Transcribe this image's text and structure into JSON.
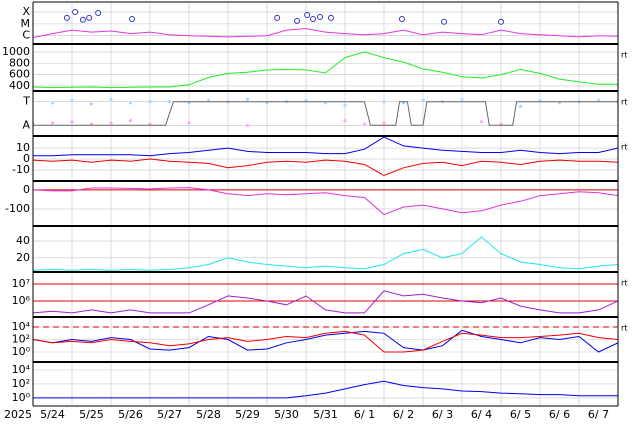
{
  "chart_data": [
    {
      "type": "line",
      "log": true,
      "xlim": [
        0,
        15
      ],
      "ylim": [
        2e-07,
        0.0007
      ],
      "yticks": [
        {
          "value": 0.0001,
          "label": "X"
        },
        {
          "value": 1e-05,
          "label": "M"
        },
        {
          "value": 1e-06,
          "label": "C"
        }
      ],
      "x": [
        0,
        0.5,
        1,
        1.5,
        2,
        2.5,
        3,
        3.5,
        4,
        4.5,
        5,
        5.5,
        6,
        6.5,
        7,
        7.5,
        8,
        8.5,
        9,
        9.5,
        10,
        10.5,
        11,
        11.5,
        12,
        12.5,
        13,
        13.5,
        14,
        14.5,
        15
      ],
      "series": [
        {
          "style": "line",
          "color": "#e633e6",
          "values": [
            7e-07,
            1.5e-06,
            3e-06,
            2e-06,
            2.5e-06,
            1.5e-06,
            2e-06,
            1.2e-06,
            1e-06,
            9e-07,
            8e-07,
            9e-07,
            1e-06,
            3e-06,
            4e-06,
            2e-06,
            1.5e-06,
            1.2e-06,
            1.5e-06,
            3e-06,
            1.2e-06,
            2e-06,
            1.5e-06,
            1.2e-06,
            3e-06,
            1.5e-06,
            1.2e-06,
            1e-06,
            8e-07,
            1e-06,
            9e-07
          ]
        },
        {
          "style": "circles",
          "color": "#3333cc",
          "x": [
            0.87,
            1.08,
            1.28,
            1.44,
            1.67,
            2.54,
            6.26,
            6.77,
            7.03,
            7.18,
            7.36,
            7.64,
            9.46,
            10.54,
            12.0
          ],
          "values": [
            3.2e-05,
            0.0001,
            2.2e-05,
            3.2e-05,
            8.3e-05,
            2.6e-05,
            3.2e-05,
            1.8e-05,
            5.6e-05,
            2.6e-05,
            3.8e-05,
            3.2e-05,
            2.6e-05,
            1.5e-05,
            1.5e-05
          ]
        }
      ]
    },
    {
      "type": "line",
      "xlim": [
        0,
        15
      ],
      "ylim": [
        310,
        1140
      ],
      "yticks": [
        1000,
        800,
        600,
        400
      ],
      "note": "rt",
      "x": [
        0,
        0.5,
        1,
        1.5,
        2,
        2.5,
        3,
        3.5,
        4,
        4.5,
        5,
        5.5,
        6,
        6.5,
        7,
        7.5,
        8,
        8.5,
        9,
        9.5,
        10,
        10.5,
        11,
        11.5,
        12,
        12.5,
        13,
        13.5,
        14,
        14.5,
        15
      ],
      "series": [
        {
          "style": "line",
          "color": "#22ee22",
          "values": [
            380,
            370,
            375,
            380,
            370,
            375,
            380,
            380,
            420,
            550,
            620,
            640,
            680,
            690,
            680,
            630,
            900,
            1000,
            900,
            820,
            700,
            640,
            560,
            540,
            600,
            690,
            620,
            520,
            470,
            430,
            430
          ]
        }
      ]
    },
    {
      "type": "line",
      "xlim": [
        0,
        15
      ],
      "ylim": [
        -1.9,
        1.9
      ],
      "yticks": [
        {
          "value": 1,
          "label": "T"
        },
        {
          "value": -1,
          "label": "A"
        }
      ],
      "note": "rt",
      "x": [
        0,
        0.5,
        1,
        1.5,
        2,
        2.5,
        3,
        3.5,
        4,
        4.5,
        5,
        5.5,
        6,
        6.5,
        7,
        7.5,
        8,
        8.5,
        9,
        9.5,
        10,
        10.5,
        11,
        11.5,
        12,
        12.5,
        13,
        13.5,
        14,
        14.5,
        15
      ],
      "series": [
        {
          "style": "dots",
          "color": "#aad8ff",
          "values": [
            null,
            0.9,
            1.1,
            0.8,
            1.2,
            0.9,
            1,
            1,
            0.9,
            1.1,
            1,
            1.2,
            0.9,
            1,
            1.1,
            0.9,
            0.7,
            null,
            1,
            0.9,
            1.1,
            1,
            1.2,
            null,
            null,
            0.6,
            1.1,
            0.9,
            1,
            1.1,
            1
          ]
        },
        {
          "style": "dots",
          "color": "#ffaaee",
          "values": [
            -0.9,
            -0.8,
            -0.7,
            -0.9,
            -0.8,
            -0.6,
            -0.9,
            null,
            -0.8,
            null,
            null,
            -1,
            null,
            null,
            null,
            null,
            -0.6,
            -0.9,
            -0.8,
            null,
            null,
            null,
            null,
            -0.7,
            -0.9,
            null,
            null,
            null,
            null,
            null,
            null
          ]
        },
        {
          "style": "line",
          "color": "#666666",
          "x": [
            0,
            3.4,
            3.6,
            8.5,
            8.65,
            9.3,
            9.4,
            9.6,
            9.7,
            10.0,
            10.1,
            11.6,
            11.7,
            12.3,
            12.4,
            15
          ],
          "values": [
            -1,
            -1,
            1,
            1,
            -1,
            -1,
            1,
            1,
            -1,
            -1,
            1,
            1,
            -1,
            -1,
            1,
            1
          ]
        }
      ]
    },
    {
      "type": "line",
      "xlim": [
        0,
        15
      ],
      "ylim": [
        -20,
        21
      ],
      "yticks": [
        10,
        0,
        -10
      ],
      "note": "rt",
      "x": [
        0,
        0.5,
        1,
        1.5,
        2,
        2.5,
        3,
        3.5,
        4,
        4.5,
        5,
        5.5,
        6,
        6.5,
        7,
        7.5,
        8,
        8.5,
        9,
        9.5,
        10,
        10.5,
        11,
        11.5,
        12,
        12.5,
        13,
        13.5,
        14,
        14.5,
        15
      ],
      "series": [
        {
          "style": "line",
          "color": "#0000ee",
          "values": [
            3,
            3,
            4,
            4,
            4,
            4,
            3,
            5,
            6,
            8,
            10,
            7,
            6,
            6,
            6,
            5,
            5,
            9,
            20,
            12,
            10,
            8,
            7,
            6,
            6,
            8,
            6,
            5,
            6,
            6,
            10
          ]
        },
        {
          "style": "line",
          "color": "#ee0000",
          "values": [
            -1,
            -2,
            -1,
            -3,
            -1,
            -2,
            0,
            -2,
            -3,
            -4,
            -8,
            -6,
            -3,
            -2,
            -3,
            -1,
            -2,
            -5,
            -15,
            -8,
            -4,
            -3,
            -6,
            -2,
            -3,
            -5,
            -2,
            -1,
            -2,
            -2,
            -3
          ]
        }
      ]
    },
    {
      "type": "line",
      "xlim": [
        0,
        15
      ],
      "ylim": [
        -190,
        47
      ],
      "yticks": [
        0,
        -100
      ],
      "hlines": [
        {
          "value": 0,
          "color": "#dd0000"
        }
      ],
      "x": [
        0,
        0.5,
        1,
        1.5,
        2,
        2.5,
        3,
        3.5,
        4,
        4.5,
        5,
        5.5,
        6,
        6.5,
        7,
        7.5,
        8,
        8.5,
        9,
        9.5,
        10,
        10.5,
        11,
        11.5,
        12,
        12.5,
        13,
        13.5,
        14,
        14.5,
        15
      ],
      "series": [
        {
          "style": "line",
          "color": "#dd33dd",
          "values": [
            0,
            -5,
            -5,
            10,
            10,
            8,
            5,
            10,
            12,
            0,
            -20,
            -30,
            -20,
            -25,
            -20,
            -15,
            -30,
            -40,
            -130,
            -90,
            -80,
            -100,
            -120,
            -110,
            -80,
            -60,
            -30,
            -20,
            -10,
            -15,
            -30
          ]
        }
      ]
    },
    {
      "type": "line",
      "xlim": [
        0,
        15
      ],
      "ylim": [
        3,
        58
      ],
      "yticks": [
        40,
        20
      ],
      "x": [
        0,
        0.5,
        1,
        1.5,
        2,
        2.5,
        3,
        3.5,
        4,
        4.5,
        5,
        5.5,
        6,
        6.5,
        7,
        7.5,
        8,
        8.5,
        9,
        9.5,
        10,
        10.5,
        11,
        11.5,
        12,
        12.5,
        13,
        13.5,
        14,
        14.5,
        15
      ],
      "series": [
        {
          "style": "line",
          "color": "#22e5e5",
          "values": [
            5,
            6,
            5,
            6,
            5,
            6,
            5,
            6,
            8,
            12,
            20,
            15,
            12,
            10,
            8,
            10,
            8,
            7,
            12,
            25,
            30,
            20,
            25,
            45,
            25,
            15,
            12,
            8,
            7,
            10,
            12
          ]
        }
      ]
    },
    {
      "type": "line",
      "log": true,
      "xlim": [
        0,
        15
      ],
      "ylim": [
        115000,
        51000000
      ],
      "note": "rt",
      "yticks": [
        {
          "value": 10000000,
          "label": "10⁷"
        },
        {
          "value": 1000000,
          "label": "10⁶"
        }
      ],
      "hlines": [
        {
          "value": 10000000,
          "color": "#dd0000"
        },
        {
          "value": 1000000,
          "color": "#dd0000"
        }
      ],
      "x": [
        0,
        0.5,
        1,
        1.5,
        2,
        2.5,
        3,
        3.5,
        4,
        4.5,
        5,
        5.5,
        6,
        6.5,
        7,
        7.5,
        8,
        8.5,
        9,
        9.5,
        10,
        10.5,
        11,
        11.5,
        12,
        12.5,
        13,
        13.5,
        14,
        14.5,
        15
      ],
      "series": [
        {
          "style": "line",
          "color": "#a020d0",
          "values": [
            200000,
            250000,
            200000,
            300000,
            200000,
            300000,
            200000,
            200000,
            200000,
            600000,
            2000000,
            1500000,
            1000000,
            600000,
            2000000,
            300000,
            200000,
            200000,
            4000000,
            2000000,
            2500000,
            1500000,
            1000000,
            800000,
            1500000,
            500000,
            300000,
            200000,
            200000,
            300000,
            1000000
          ]
        }
      ]
    },
    {
      "type": "line",
      "log": true,
      "xlim": [
        0,
        15
      ],
      "ylim": [
        0.025,
        400000
      ],
      "note": "rt",
      "yticks": [
        {
          "value": 10000,
          "label": "10⁴"
        },
        {
          "value": 100,
          "label": "10²"
        },
        {
          "value": 1,
          "label": "10⁰"
        }
      ],
      "hlines": [
        {
          "value": 10000,
          "color": "#dd0000",
          "dash": true
        }
      ],
      "x": [
        0,
        0.5,
        1,
        1.5,
        2,
        2.5,
        3,
        3.5,
        4,
        4.5,
        5,
        5.5,
        6,
        6.5,
        7,
        7.5,
        8,
        8.5,
        9,
        9.5,
        10,
        10.5,
        11,
        11.5,
        12,
        12.5,
        13,
        13.5,
        14,
        14.5,
        15
      ],
      "series": [
        {
          "style": "line",
          "color": "#0000ee",
          "values": [
            100,
            30,
            100,
            50,
            200,
            100,
            3,
            2,
            5,
            300,
            100,
            2,
            3,
            30,
            100,
            500,
            1000,
            2000,
            1000,
            5,
            2,
            10,
            3000,
            300,
            100,
            30,
            200,
            100,
            300,
            1,
            30
          ]
        },
        {
          "style": "line",
          "color": "#ee0000",
          "values": [
            100,
            30,
            50,
            30,
            100,
            50,
            30,
            10,
            20,
            100,
            200,
            50,
            100,
            300,
            200,
            1000,
            2000,
            500,
            1,
            1,
            2,
            50,
            1000,
            500,
            200,
            200,
            300,
            500,
            1000,
            200,
            100
          ]
        }
      ]
    },
    {
      "type": "line",
      "log": true,
      "xlim": [
        0,
        15
      ],
      "ylim": [
        0.07,
        140000
      ],
      "yticks": [
        {
          "value": 10000,
          "label": "10⁴"
        },
        {
          "value": 100,
          "label": "10²"
        },
        {
          "value": 1,
          "label": "10⁰"
        }
      ],
      "x": [
        0,
        0.5,
        1,
        1.5,
        2,
        2.5,
        3,
        3.5,
        4,
        4.5,
        5,
        5.5,
        6,
        6.5,
        7,
        7.5,
        8,
        8.5,
        9,
        9.5,
        10,
        10.5,
        11,
        11.5,
        12,
        12.5,
        13,
        13.5,
        14,
        14.5,
        15
      ],
      "series": [
        {
          "style": "line",
          "color": "#0000ee",
          "values": [
            1,
            1,
            1,
            1,
            1,
            1,
            1,
            1,
            1,
            1,
            1,
            1,
            1,
            1,
            2,
            5,
            20,
            80,
            250,
            60,
            30,
            20,
            10,
            8,
            5,
            4,
            3,
            3,
            2,
            2,
            2
          ]
        }
      ],
      "xlabel": "2025",
      "xgrid": [
        1,
        2,
        3,
        4,
        5,
        6,
        7,
        8,
        9,
        10,
        11,
        12,
        13,
        14
      ],
      "xticks": [
        {
          "value": 0.5,
          "label": "5/24"
        },
        {
          "value": 1.5,
          "label": "5/25"
        },
        {
          "value": 2.5,
          "label": "5/26"
        },
        {
          "value": 3.5,
          "label": "5/27"
        },
        {
          "value": 4.5,
          "label": "5/28"
        },
        {
          "value": 5.5,
          "label": "5/29"
        },
        {
          "value": 6.5,
          "label": "5/30"
        },
        {
          "value": 7.5,
          "label": "5/31"
        },
        {
          "value": 8.5,
          "label": "6/ 1"
        },
        {
          "value": 9.5,
          "label": "6/ 2"
        },
        {
          "value": 10.5,
          "label": "6/ 3"
        },
        {
          "value": 11.5,
          "label": "6/ 4"
        },
        {
          "value": 12.5,
          "label": "6/ 5"
        },
        {
          "value": 13.5,
          "label": "6/ 6"
        },
        {
          "value": 14.5,
          "label": "6/ 7"
        }
      ]
    }
  ]
}
